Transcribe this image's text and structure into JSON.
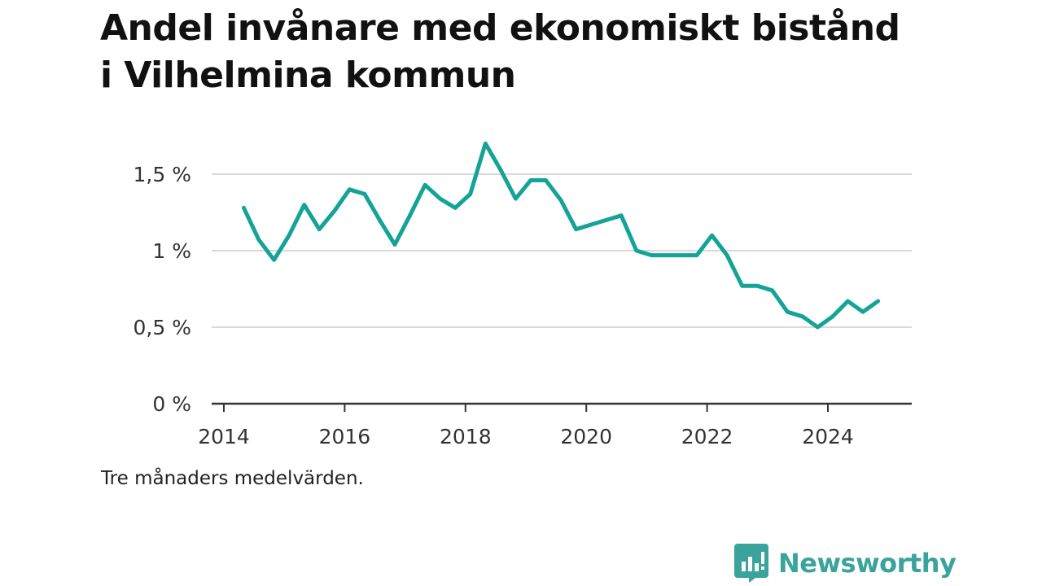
{
  "title": "Andel invånare med ekonomiskt bistånd i Vilhelmina kommun",
  "note": "Tre månaders medelvärden.",
  "logo": {
    "name": "Newsworthy",
    "icon": "newsworthy-logo-icon"
  },
  "colors": {
    "line": "#14a397",
    "grid": "#d9d9d9",
    "axis": "#333333",
    "brand": "#3aa39b"
  },
  "chart_data": {
    "type": "line",
    "title": "Andel invånare med ekonomiskt bistånd i Vilhelmina kommun",
    "xlabel": "",
    "ylabel": "",
    "xlim": [
      2014,
      2025.3
    ],
    "ylim": [
      0,
      1.7
    ],
    "x_ticks": [
      {
        "value": 2014,
        "label": "2014"
      },
      {
        "value": 2016,
        "label": "2016"
      },
      {
        "value": 2018,
        "label": "2018"
      },
      {
        "value": 2020,
        "label": "2020"
      },
      {
        "value": 2022,
        "label": "2022"
      },
      {
        "value": 2024,
        "label": "2024"
      }
    ],
    "y_ticks": [
      {
        "value": 0,
        "label": "0 %"
      },
      {
        "value": 0.5,
        "label": "0,5 %"
      },
      {
        "value": 1,
        "label": "1 %"
      },
      {
        "value": 1.5,
        "label": "1,5 %"
      }
    ],
    "grid": true,
    "series": [
      {
        "x": [
          2014.33,
          2014.58,
          2014.83,
          2015.08,
          2015.33,
          2015.58,
          2015.83,
          2016.08,
          2016.33,
          2016.58,
          2016.83,
          2017.08,
          2017.33,
          2017.58,
          2017.83,
          2018.08,
          2018.33,
          2018.58,
          2018.83,
          2019.08,
          2019.33,
          2019.58,
          2019.83,
          2020.08,
          2020.33,
          2020.58,
          2020.83,
          2021.08,
          2021.33,
          2021.58,
          2021.83,
          2022.08,
          2022.33,
          2022.58,
          2022.83,
          2023.08,
          2023.33,
          2023.58,
          2023.83,
          2024.08,
          2024.33,
          2024.58,
          2024.83
        ],
        "values": [
          1.28,
          1.07,
          0.94,
          1.1,
          1.3,
          1.14,
          1.26,
          1.4,
          1.37,
          1.2,
          1.04,
          1.23,
          1.43,
          1.34,
          1.28,
          1.37,
          1.7,
          1.53,
          1.34,
          1.46,
          1.46,
          1.33,
          1.14,
          1.17,
          1.2,
          1.23,
          1.0,
          0.97,
          0.97,
          0.97,
          0.97,
          1.1,
          0.97,
          0.77,
          0.77,
          0.74,
          0.6,
          0.57,
          0.5,
          0.57,
          0.67,
          0.6,
          0.67
        ]
      }
    ]
  }
}
